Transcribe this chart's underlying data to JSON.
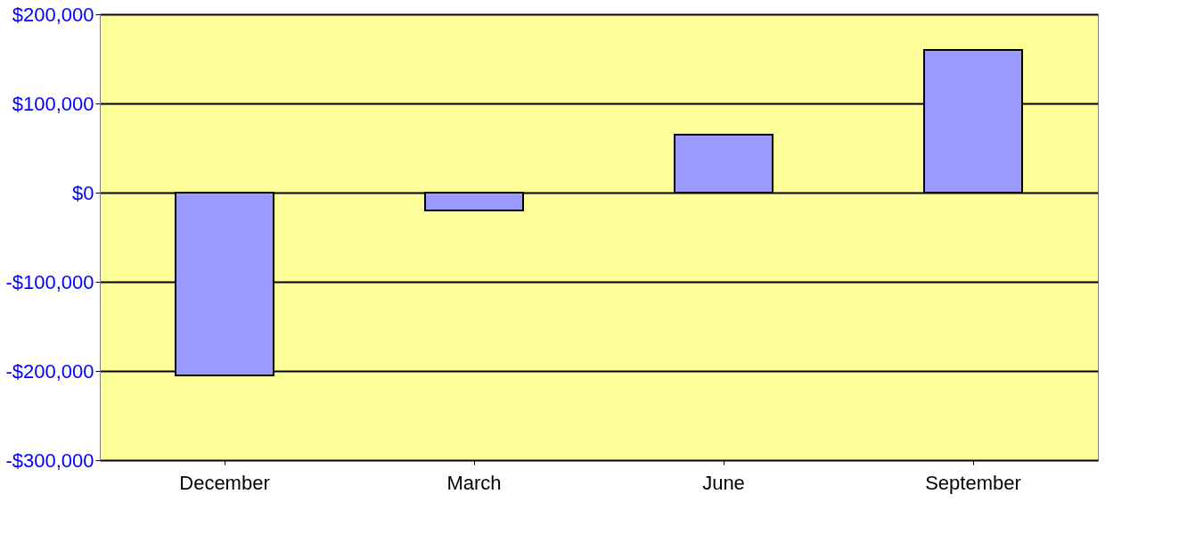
{
  "chart_data": {
    "type": "bar",
    "categories": [
      "December",
      "March",
      "June",
      "September"
    ],
    "values": [
      -205000,
      -20000,
      65000,
      160000
    ],
    "color": "#9999ff",
    "ylim": [
      -300000,
      200000
    ],
    "yticks": [
      {
        "value": -300000,
        "label": "-$300,000"
      },
      {
        "value": -200000,
        "label": "-$200,000"
      },
      {
        "value": -100000,
        "label": "-$100,000"
      },
      {
        "value": 0,
        "label": "$0"
      },
      {
        "value": 100000,
        "label": "$100,000"
      },
      {
        "value": 200000,
        "label": "$200,000"
      }
    ],
    "grid": "y"
  }
}
